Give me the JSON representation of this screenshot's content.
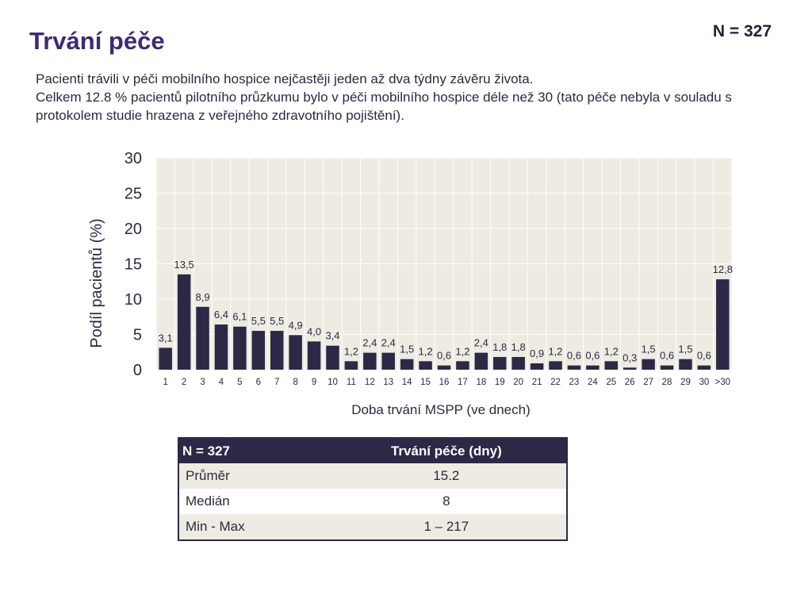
{
  "slide": {
    "title": "Trvání péče",
    "n_badge": "N = 327",
    "description": [
      "Pacienti trávili v péči mobilního hospice nejčastěji jeden až dva týdny závěru života.",
      "Celkem 12.8 % pacientů pilotního průzkumu bylo v péči mobilního hospice déle než 30 (tato péče nebyla v souladu s protokolem studie hrazena z veřejného zdravotního pojištění)."
    ]
  },
  "chart_data": {
    "type": "bar",
    "categories": [
      "1",
      "2",
      "3",
      "4",
      "5",
      "6",
      "7",
      "8",
      "9",
      "10",
      "11",
      "12",
      "13",
      "14",
      "15",
      "16",
      "17",
      "18",
      "19",
      "20",
      "21",
      "22",
      "23",
      "24",
      "25",
      "26",
      "27",
      "28",
      "29",
      "30",
      ">30"
    ],
    "values": [
      3.1,
      13.5,
      8.9,
      6.4,
      6.1,
      5.5,
      5.5,
      4.9,
      4.0,
      3.4,
      1.2,
      2.4,
      2.4,
      1.5,
      1.2,
      0.6,
      1.2,
      2.4,
      1.8,
      1.8,
      0.9,
      1.2,
      0.6,
      0.6,
      1.2,
      0.3,
      1.5,
      0.6,
      1.5,
      0.6,
      12.8
    ],
    "value_labels": [
      "3,1",
      "13,5",
      "8,9",
      "6,4",
      "6,1",
      "5,5",
      "5,5",
      "4,9",
      "4,0",
      "3,4",
      "1,2",
      "2,4",
      "2,4",
      "1,5",
      "1,2",
      "0,6",
      "1,2",
      "2,4",
      "1,8",
      "1,8",
      "0,9",
      "1,2",
      "0,6",
      "0,6",
      "1,2",
      "0,3",
      "1,5",
      "0,6",
      "1,5",
      "0,6",
      "12,8"
    ],
    "xlabel": "Doba trvání MSPP (ve dnech)",
    "ylabel": "Podíl pacientů (%)",
    "ylim": [
      0,
      30
    ],
    "yticks": [
      0,
      5,
      10,
      15,
      20,
      25,
      30
    ],
    "grid": true,
    "colors": {
      "bar": "#2c2946",
      "plot_bg": "#eeebe2",
      "grid": "#ffffff"
    }
  },
  "stats_table": {
    "headers": [
      "N = 327",
      "Trvání péče (dny)"
    ],
    "rows": [
      {
        "label": "Průměr",
        "value": "15.2"
      },
      {
        "label": "Medián",
        "value": "8"
      },
      {
        "label": "Min - Max",
        "value": "1 – 217"
      }
    ]
  }
}
